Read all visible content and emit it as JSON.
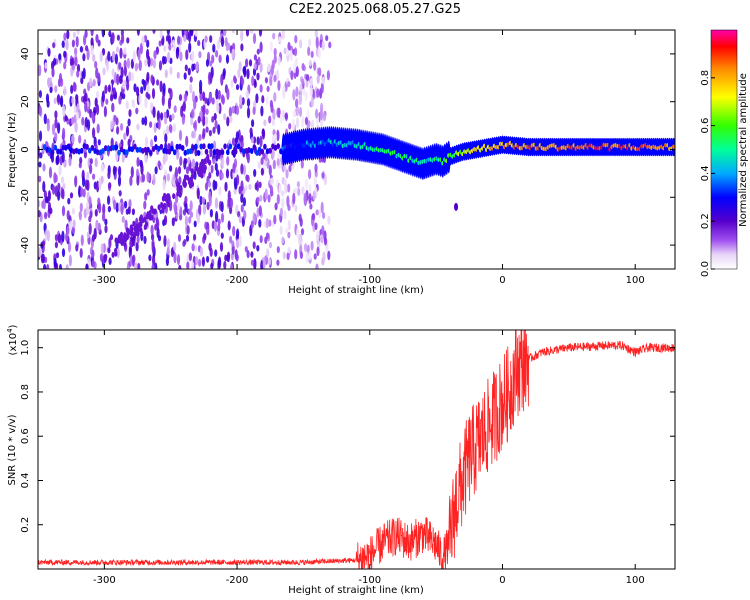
{
  "title": "C2E2.2025.068.05.27.G25",
  "chart_data": [
    {
      "type": "heatmap",
      "xlabel": "Height of straight line (km)",
      "ylabel": "Frequency (Hz)",
      "xlim": [
        -350,
        130
      ],
      "ylim": [
        -50,
        50
      ],
      "x_ticks": [
        -300,
        -200,
        -100,
        0,
        100
      ],
      "y_ticks": [
        -40,
        -20,
        0,
        20,
        40
      ],
      "colorbar": {
        "label": "Normalized spectral amplitude",
        "range": [
          0,
          1
        ],
        "ticks": [
          "0.0",
          "0.2",
          "0.4",
          "0.6",
          "0.8"
        ],
        "colors": [
          "#ffffff",
          "#e9d6f7",
          "#8a2be2",
          "#4b00cc",
          "#0000ff",
          "#00ccff",
          "#00ff99",
          "#33ff00",
          "#ffff00",
          "#ff8800",
          "#ff0000",
          "#ff00aa"
        ]
      },
      "ridge": {
        "x": [
          -165,
          -150,
          -130,
          -110,
          -90,
          -75,
          -60,
          -50,
          -45,
          -40,
          -30,
          -20,
          -10,
          0,
          20,
          50,
          80,
          100,
          130
        ],
        "y": [
          0,
          2,
          3,
          2,
          0,
          -3,
          -6,
          -4,
          -5,
          -3,
          -1,
          0,
          1,
          2,
          1,
          1,
          1,
          1,
          1
        ],
        "amplitude": [
          0.3,
          0.35,
          0.4,
          0.45,
          0.5,
          0.5,
          0.45,
          0.5,
          0.55,
          0.6,
          0.65,
          0.7,
          0.75,
          0.8,
          0.85,
          0.85,
          0.9,
          0.85,
          0.8
        ]
      },
      "noise_region_x": [
        -350,
        -130
      ],
      "isolated_blob": {
        "x": -35,
        "y": -24
      }
    },
    {
      "type": "line",
      "xlabel": "Height of straight line (km)",
      "ylabel": "SNR (10 * v/v)",
      "y_exponent_label": "(x10",
      "y_exponent_power": "4",
      "y_exponent_close": ")",
      "xlim": [
        -350,
        130
      ],
      "ylim": [
        0,
        1.08
      ],
      "x_ticks": [
        -300,
        -200,
        -100,
        0,
        100
      ],
      "y_ticks": [
        0.2,
        0.4,
        0.6,
        0.8,
        1.0
      ],
      "series": [
        {
          "color": "#ff2222",
          "x": [
            -350,
            -250,
            -150,
            -110,
            -100,
            -90,
            -80,
            -70,
            -60,
            -50,
            -45,
            -40,
            -35,
            -30,
            -25,
            -20,
            -15,
            -10,
            -5,
            0,
            5,
            10,
            20,
            30,
            50,
            80,
            90,
            100,
            110,
            130
          ],
          "y": [
            0.03,
            0.03,
            0.03,
            0.04,
            0.06,
            0.12,
            0.15,
            0.12,
            0.16,
            0.11,
            0.05,
            0.12,
            0.3,
            0.4,
            0.5,
            0.55,
            0.6,
            0.65,
            0.7,
            0.75,
            0.8,
            0.9,
            0.95,
            0.98,
            1.0,
            1.01,
            1.01,
            0.98,
            1.0,
            1.0
          ]
        }
      ]
    }
  ]
}
